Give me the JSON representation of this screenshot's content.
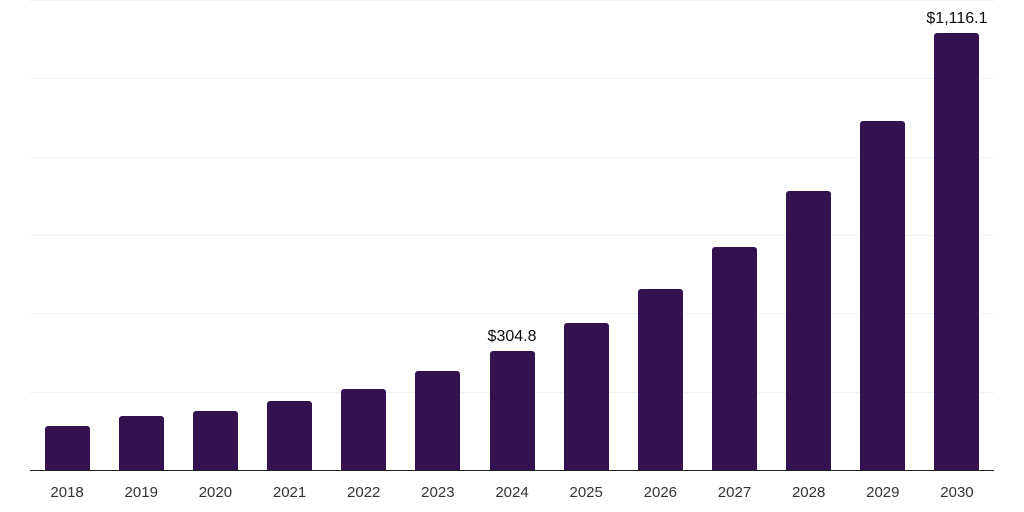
{
  "chart_data": {
    "type": "bar",
    "title": "",
    "xlabel": "",
    "ylabel": "",
    "categories": [
      "2018",
      "2019",
      "2020",
      "2021",
      "2022",
      "2023",
      "2024",
      "2025",
      "2026",
      "2027",
      "2028",
      "2029",
      "2030"
    ],
    "values": [
      113,
      138,
      151,
      176,
      208,
      253,
      304.8,
      375,
      461,
      570,
      712,
      892,
      1116.1
    ],
    "data_labels": {
      "2024": "$304.8",
      "2030": "$1,116.1"
    },
    "ylim": [
      0,
      1200
    ],
    "gridline_interval": 200,
    "grid": "horizontal-only",
    "legend": "none",
    "colors": {
      "bar": "#341250",
      "gridline": "#f2f2f2",
      "axis_line": "#1f1f1f",
      "tick_label": "#333333",
      "value_label": "#0d0d0d",
      "background": "#ffffff"
    }
  }
}
